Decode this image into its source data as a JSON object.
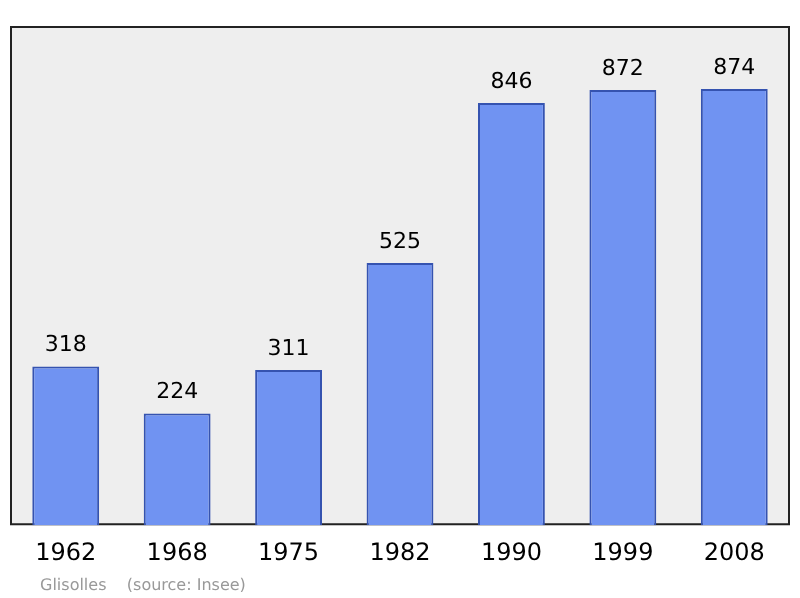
{
  "chart_data": {
    "type": "bar",
    "categories": [
      "1962",
      "1968",
      "1975",
      "1982",
      "1990",
      "1999",
      "2008"
    ],
    "values": [
      318,
      224,
      311,
      525,
      846,
      872,
      874
    ],
    "color": "#7093f2",
    "data_labels": true,
    "grid": false,
    "legend": false,
    "tick_labels": "x",
    "annotations": [
      "Glisolles    (source: Insee)"
    ]
  }
}
